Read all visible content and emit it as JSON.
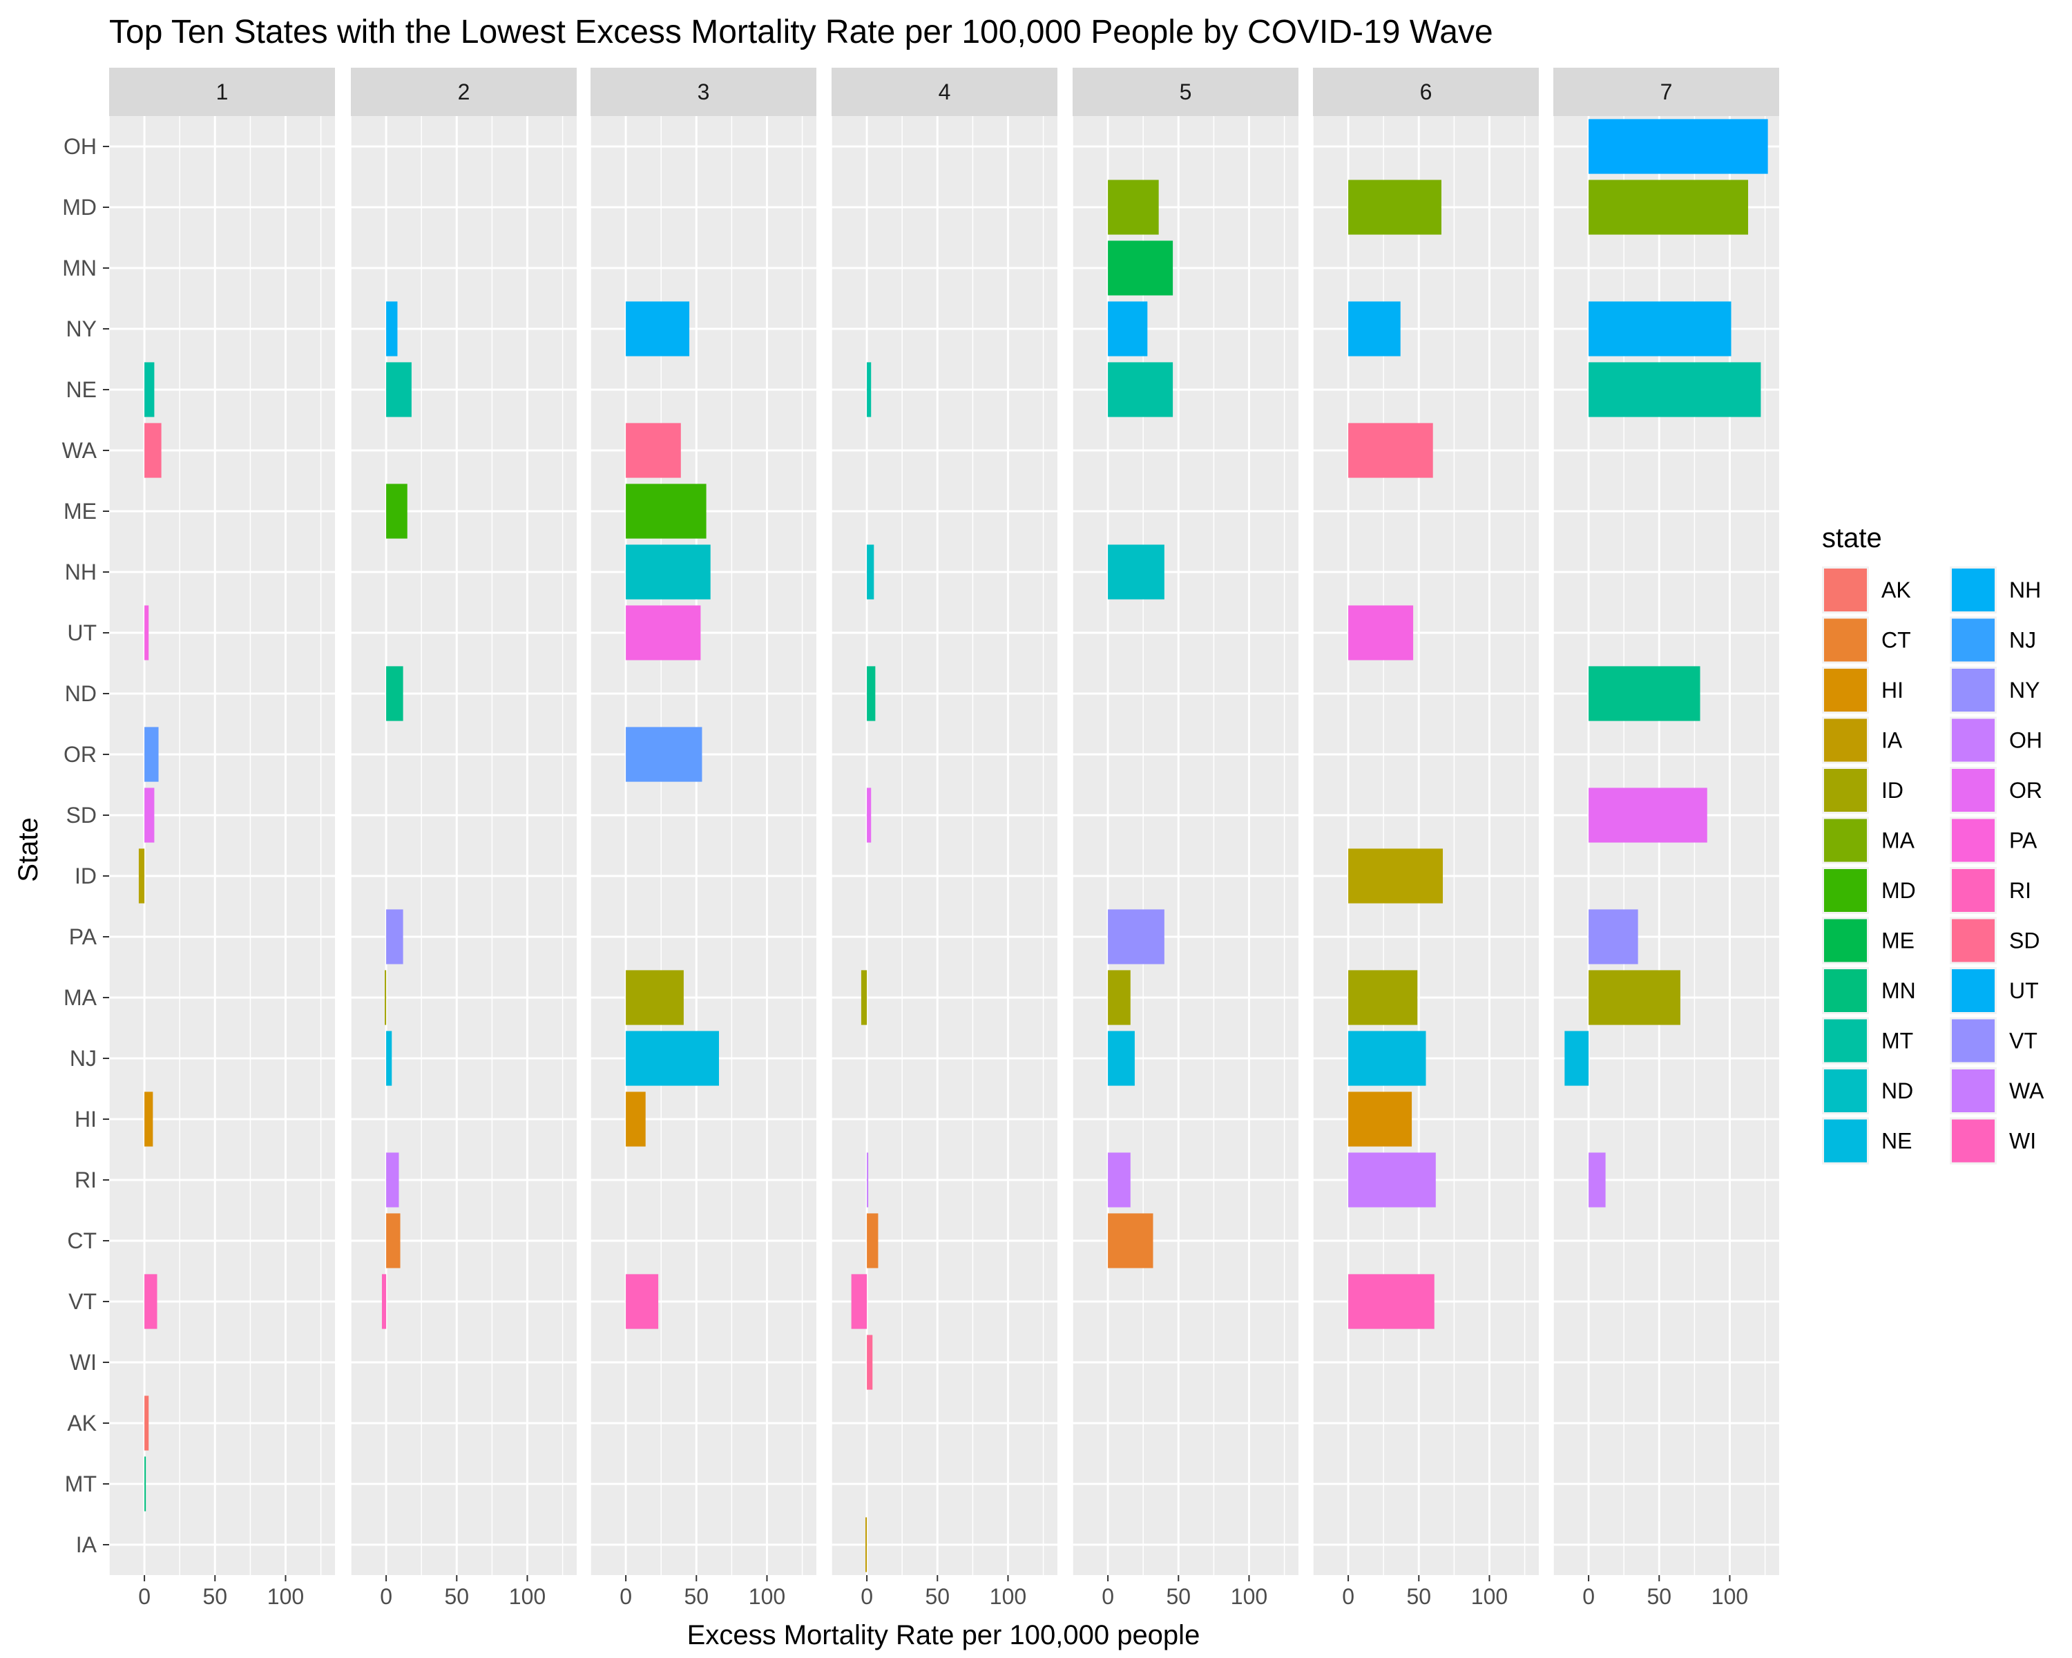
{
  "chart_data": {
    "type": "bar",
    "orientation": "horizontal",
    "title": "Top Ten States with the Lowest Excess Mortality Rate per 100,000 People by COVID-19 Wave",
    "xlabel": "Excess Mortality Rate per 100,000 people",
    "ylabel": "State",
    "xlim": [
      -25,
      135
    ],
    "x_ticks": [
      0,
      50,
      100
    ],
    "facet_by": "wave",
    "facets": [
      "1",
      "2",
      "3",
      "4",
      "5",
      "6",
      "7"
    ],
    "categories": [
      "OH",
      "MD",
      "MN",
      "NY",
      "NE",
      "WA",
      "ME",
      "NH",
      "UT",
      "ND",
      "OR",
      "SD",
      "ID",
      "PA",
      "MA",
      "NJ",
      "HI",
      "RI",
      "CT",
      "VT",
      "WI",
      "AK",
      "MT",
      "IA"
    ],
    "grid": true,
    "legend": {
      "title": "state",
      "position": "right",
      "entries": [
        "AK",
        "CT",
        "HI",
        "IA",
        "ID",
        "MA",
        "MD",
        "ME",
        "MN",
        "MT",
        "ND",
        "NE",
        "NH",
        "NJ",
        "NY",
        "OH",
        "OR",
        "PA",
        "RI",
        "SD",
        "UT",
        "VT",
        "WA",
        "WI"
      ],
      "colors": {
        "AK": "#F8766D",
        "CT": "#EA8331",
        "HI": "#D89000",
        "IA": "#C09B00",
        "ID": "#A3A500",
        "MA": "#7CAE00",
        "MD": "#39B600",
        "ME": "#00BB4E",
        "MN": "#00BF7D",
        "MT": "#00C1A3",
        "ND": "#00BFC4",
        "NE": "#00BAE0",
        "NH": "#00B0F6",
        "NJ": "#35A2FF",
        "NY": "#9590FF",
        "OH": "#C77CFF",
        "OR": "#E76BF3",
        "PA": "#FA62DB",
        "RI": "#FF62BC",
        "SD": "#FF6C91",
        "UT": "#00B0F6",
        "VT": "#9590FF",
        "WA": "#C77CFF",
        "WI": "#FF62BC"
      }
    },
    "bar_colors": {
      "AK": "#F8766D",
      "CT": "#EA8331",
      "HI": "#D89000",
      "IA": "#C09B00",
      "ID": "#B5A300",
      "MA": "#A3A500",
      "MD": "#7CAE00",
      "ME": "#39B600",
      "MN": "#00BB4E",
      "MT": "#00BF7D",
      "ND": "#00C08B",
      "NE": "#00C1A3",
      "NH": "#00BFC4",
      "NJ": "#00BAE0",
      "NY": "#00B0F6",
      "OH": "#00A9FF",
      "OR": "#619CFF",
      "PA": "#9590FF",
      "RI": "#C77CFF",
      "SD": "#E76BF3",
      "UT": "#F564E3",
      "VT": "#FF62BC",
      "WA": "#FF6C91",
      "WI": "#FF6A98"
    },
    "series": [
      {
        "facet": "1",
        "values": {
          "NE": 7,
          "WA": 12,
          "UT": 3,
          "OR": 10,
          "SD": 7,
          "ID": -4,
          "HI": 6,
          "VT": 9,
          "AK": 3,
          "MT": 1
        }
      },
      {
        "facet": "2",
        "values": {
          "NY": 8,
          "NE": 18,
          "ME": 15,
          "ND": 12,
          "PA": 12,
          "MA": -1,
          "NJ": 4,
          "RI": 9,
          "CT": 10,
          "VT": -3
        }
      },
      {
        "facet": "3",
        "values": {
          "NY": 45,
          "WA": 39,
          "ME": 57,
          "NH": 60,
          "UT": 53,
          "OR": 54,
          "MA": 41,
          "NJ": 66,
          "HI": 14,
          "VT": 23
        }
      },
      {
        "facet": "4",
        "values": {
          "NE": 3,
          "NH": 5,
          "ND": 6,
          "SD": 3,
          "MA": -4,
          "RI": 1,
          "CT": 8,
          "VT": -11,
          "WI": 4,
          "IA": -1
        }
      },
      {
        "facet": "5",
        "values": {
          "MD": 36,
          "MN": 46,
          "NY": 28,
          "NE": 46,
          "NH": 40,
          "PA": 40,
          "MA": 16,
          "NJ": 19,
          "RI": 16,
          "CT": 32
        }
      },
      {
        "facet": "6",
        "values": {
          "MD": 66,
          "NY": 37,
          "WA": 60,
          "UT": 46,
          "ID": 67,
          "MA": 49,
          "NJ": 55,
          "HI": 45,
          "RI": 62,
          "VT": 61
        }
      },
      {
        "facet": "7",
        "values": {
          "OH": 127,
          "MD": 113,
          "NY": 101,
          "NE": 122,
          "ND": 79,
          "SD": 84,
          "PA": 35,
          "MA": 65,
          "NJ": -17,
          "RI": 12
        }
      }
    ]
  }
}
